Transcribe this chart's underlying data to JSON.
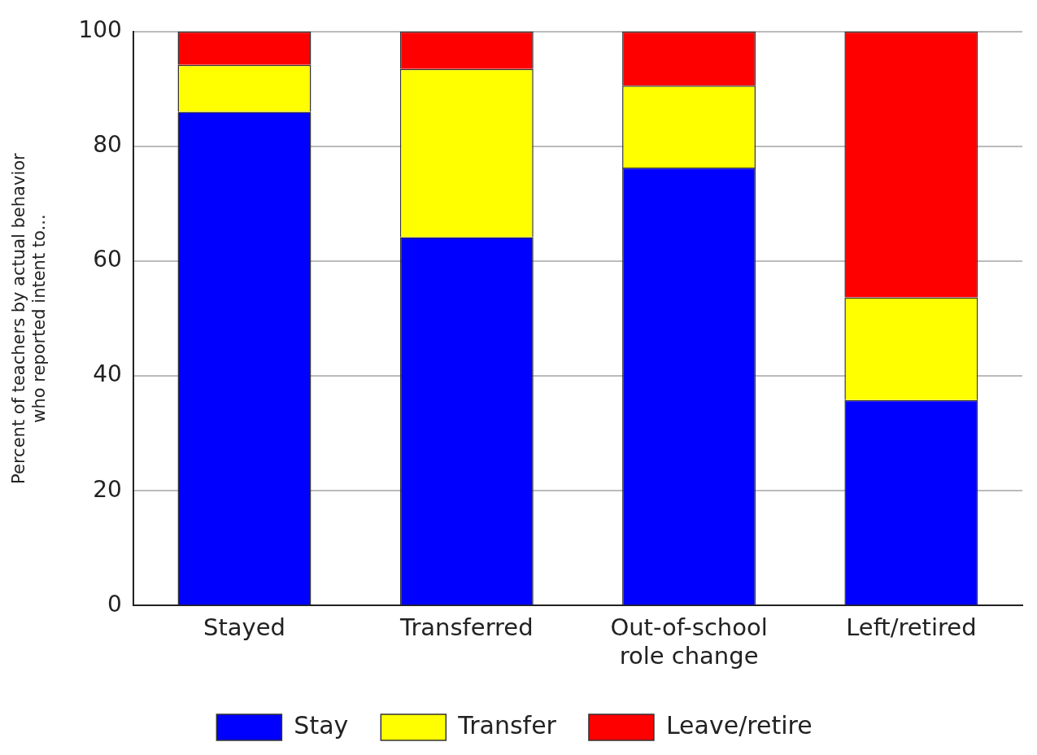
{
  "chart_data": {
    "type": "bar",
    "stacked": true,
    "ylabel": "Percent of teachers by actual behavior who reported intent to...",
    "categories": [
      "Stayed",
      "Transferred",
      "Out-of-school role change",
      "Left/retired"
    ],
    "series": [
      {
        "name": "Stay",
        "color": "#0000ff",
        "values": [
          86,
          64.2,
          76.3,
          35.8
        ]
      },
      {
        "name": "Transfer",
        "color": "#ffff00",
        "values": [
          8.2,
          29.3,
          14.3,
          17.9
        ]
      },
      {
        "name": "Leave/retire",
        "color": "#ff0000",
        "values": [
          5.8,
          6.5,
          9.4,
          46.3
        ]
      }
    ],
    "ylim": [
      0,
      100
    ],
    "yticks": [
      0,
      20,
      40,
      60,
      80,
      100
    ],
    "grid": "y",
    "legend": "bottom"
  }
}
